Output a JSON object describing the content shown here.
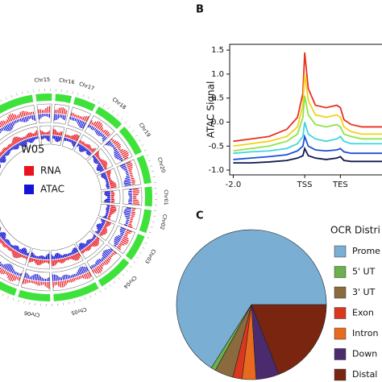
{
  "panels": {
    "b": "B",
    "c": "C"
  },
  "circos": {
    "chromosomes": [
      "Chr15",
      "Chr16",
      "Chr17",
      "Chr18",
      "Chr19",
      "Chr20",
      "Chr01",
      "Chr02",
      "Chr03",
      "Chr04",
      "Chr05",
      "Chr06"
    ],
    "legend_title": "W05",
    "legend": [
      {
        "name": "RNA",
        "color": "#e8131b"
      },
      {
        "name": "ATAC",
        "color": "#1414d4"
      }
    ]
  },
  "chart_data": [
    {
      "type": "line",
      "ylabel": "ATAC  Signal",
      "x": [
        -2,
        -1.5,
        -1,
        -0.5,
        -0.2,
        -0.05,
        0,
        0.1,
        0.3,
        0.6,
        0.9,
        1.0,
        1.1,
        1.3,
        1.6,
        2.0,
        2.3
      ],
      "xlim": [
        -2.1,
        2.3
      ],
      "xticks": [
        {
          "value": -2,
          "label": "-2.0"
        },
        {
          "value": 0,
          "label": "TSS"
        },
        {
          "value": 1,
          "label": "TES"
        }
      ],
      "ylim": [
        -1.1,
        1.62
      ],
      "yticks": [
        {
          "value": -1,
          "label": "-1.0"
        },
        {
          "value": -0.5,
          "label": "-0.5"
        },
        {
          "value": 0,
          "label": "0.0"
        },
        {
          "value": 0.5,
          "label": "0.5"
        },
        {
          "value": 1,
          "label": "1.0"
        },
        {
          "value": 1.5,
          "label": "1.5"
        }
      ],
      "series": [
        {
          "color": "#e8321e",
          "values": [
            -0.4,
            -0.35,
            -0.3,
            -0.15,
            0.1,
            0.6,
            1.45,
            0.7,
            0.35,
            0.3,
            0.35,
            0.3,
            0.05,
            -0.05,
            -0.1,
            -0.1,
            -0.1
          ]
        },
        {
          "color": "#f2d21b",
          "values": [
            -0.5,
            -0.45,
            -0.4,
            -0.3,
            -0.1,
            0.35,
            1.0,
            0.45,
            0.15,
            0.1,
            0.15,
            0.1,
            -0.1,
            -0.2,
            -0.25,
            -0.25,
            -0.25
          ]
        },
        {
          "color": "#8fe34a",
          "values": [
            -0.6,
            -0.55,
            -0.5,
            -0.4,
            -0.25,
            0.1,
            0.55,
            0.15,
            -0.05,
            -0.1,
            -0.05,
            -0.1,
            -0.25,
            -0.3,
            -0.35,
            -0.35,
            -0.35
          ]
        },
        {
          "color": "#3fd6e0",
          "values": [
            -0.65,
            -0.62,
            -0.6,
            -0.55,
            -0.45,
            -0.3,
            0.0,
            -0.25,
            -0.35,
            -0.4,
            -0.35,
            -0.3,
            -0.4,
            -0.45,
            -0.45,
            -0.45,
            -0.45
          ]
        },
        {
          "color": "#1a4fd8",
          "values": [
            -0.78,
            -0.75,
            -0.72,
            -0.68,
            -0.6,
            -0.5,
            -0.3,
            -0.5,
            -0.58,
            -0.6,
            -0.58,
            -0.55,
            -0.62,
            -0.65,
            -0.65,
            -0.65,
            -0.65
          ]
        },
        {
          "color": "#101a50",
          "values": [
            -0.85,
            -0.85,
            -0.83,
            -0.8,
            -0.75,
            -0.7,
            -0.55,
            -0.7,
            -0.75,
            -0.78,
            -0.75,
            -0.72,
            -0.8,
            -0.82,
            -0.82,
            -0.82,
            -0.82
          ]
        }
      ]
    },
    {
      "type": "pie",
      "legend_title": "OCR Distri",
      "categories": [
        "Prome",
        "5' UT",
        "3' UT",
        "Exon",
        "Intron",
        "Down",
        "Distal"
      ],
      "values": [
        66,
        1,
        4,
        2,
        3,
        5,
        19
      ],
      "colors": [
        "#7aaed3",
        "#6ab04c",
        "#8b6a3e",
        "#d9381e",
        "#e86a1e",
        "#4b2a6e",
        "#7a2510"
      ]
    }
  ]
}
